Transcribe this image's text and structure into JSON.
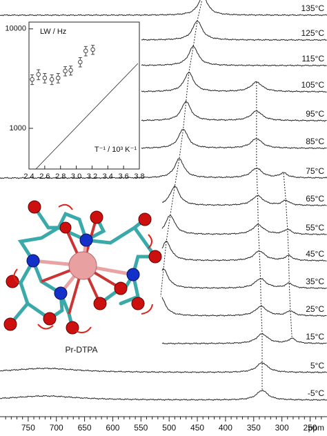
{
  "chart_data": [
    {
      "type": "spectrum",
      "xlim": [
        800,
        220
      ],
      "xticks": [
        750,
        700,
        650,
        600,
        550,
        500,
        450,
        400,
        350,
        300,
        250
      ],
      "xminorticks": [
        790,
        780,
        770,
        760,
        740,
        730,
        720,
        710,
        690,
        680,
        670,
        660,
        640,
        630,
        620,
        610,
        590,
        580,
        570,
        560,
        540,
        530,
        520,
        510,
        490,
        480,
        470,
        460,
        440,
        430,
        420,
        410,
        390,
        380,
        370,
        360,
        340,
        330,
        320,
        310,
        290,
        280,
        270,
        260,
        240,
        230
      ],
      "xlabel": "ppm",
      "annotation": "Pr-DTPA",
      "series": [
        {
          "name": "135°C",
          "peaks": [
            440
          ]
        },
        {
          "name": "125°C",
          "peaks": [
            450
          ]
        },
        {
          "name": "115°C",
          "peaks": [
            457
          ]
        },
        {
          "name": "105°C",
          "peaks": [
            465,
            345
          ]
        },
        {
          "name": "95°C",
          "peaks": [
            470,
            345
          ]
        },
        {
          "name": "85°C",
          "peaks": [
            475,
            345
          ]
        },
        {
          "name": "75°C",
          "peaks": [
            482,
            345,
            297
          ]
        },
        {
          "name": "65°C",
          "peaks": [
            490,
            343,
            293
          ]
        },
        {
          "name": "55°C",
          "peaks": [
            498,
            342,
            290
          ]
        },
        {
          "name": "45°C",
          "peaks": [
            505,
            340,
            288
          ]
        },
        {
          "name": "35°C",
          "peaks": [
            510,
            338,
            287
          ]
        },
        {
          "name": "25°C",
          "peaks": [
            515,
            337,
            285
          ]
        },
        {
          "name": "15°C",
          "peaks": [
            335,
            282
          ]
        },
        {
          "name": "5°C",
          "peaks": [
            720,
            335
          ]
        },
        {
          "name": "-5°C",
          "peaks": [
            720,
            335
          ]
        }
      ]
    },
    {
      "type": "scatter",
      "ylabel": "LW / Hz",
      "xlabel": "T⁻¹ / 10³ K⁻¹",
      "yscale": "log",
      "x": [
        2.44,
        2.52,
        2.6,
        2.69,
        2.77,
        2.86,
        2.93,
        3.05,
        3.12,
        3.21
      ],
      "values": [
        3100,
        3480,
        3210,
        3100,
        3210,
        3770,
        3830,
        4640,
        6000,
        6190
      ],
      "errors": [
        350,
        400,
        350,
        350,
        350,
        400,
        400,
        500,
        650,
        650
      ],
      "xlim": [
        2.4,
        3.8
      ],
      "ylim": [
        390,
        11700
      ],
      "xticks": [
        2.4,
        2.6,
        2.8,
        {
          "value": 3,
          "label": "3.0"
        },
        3.2,
        3.4,
        3.6,
        3.8
      ],
      "yticks": [
        1000,
        10000
      ]
    }
  ]
}
